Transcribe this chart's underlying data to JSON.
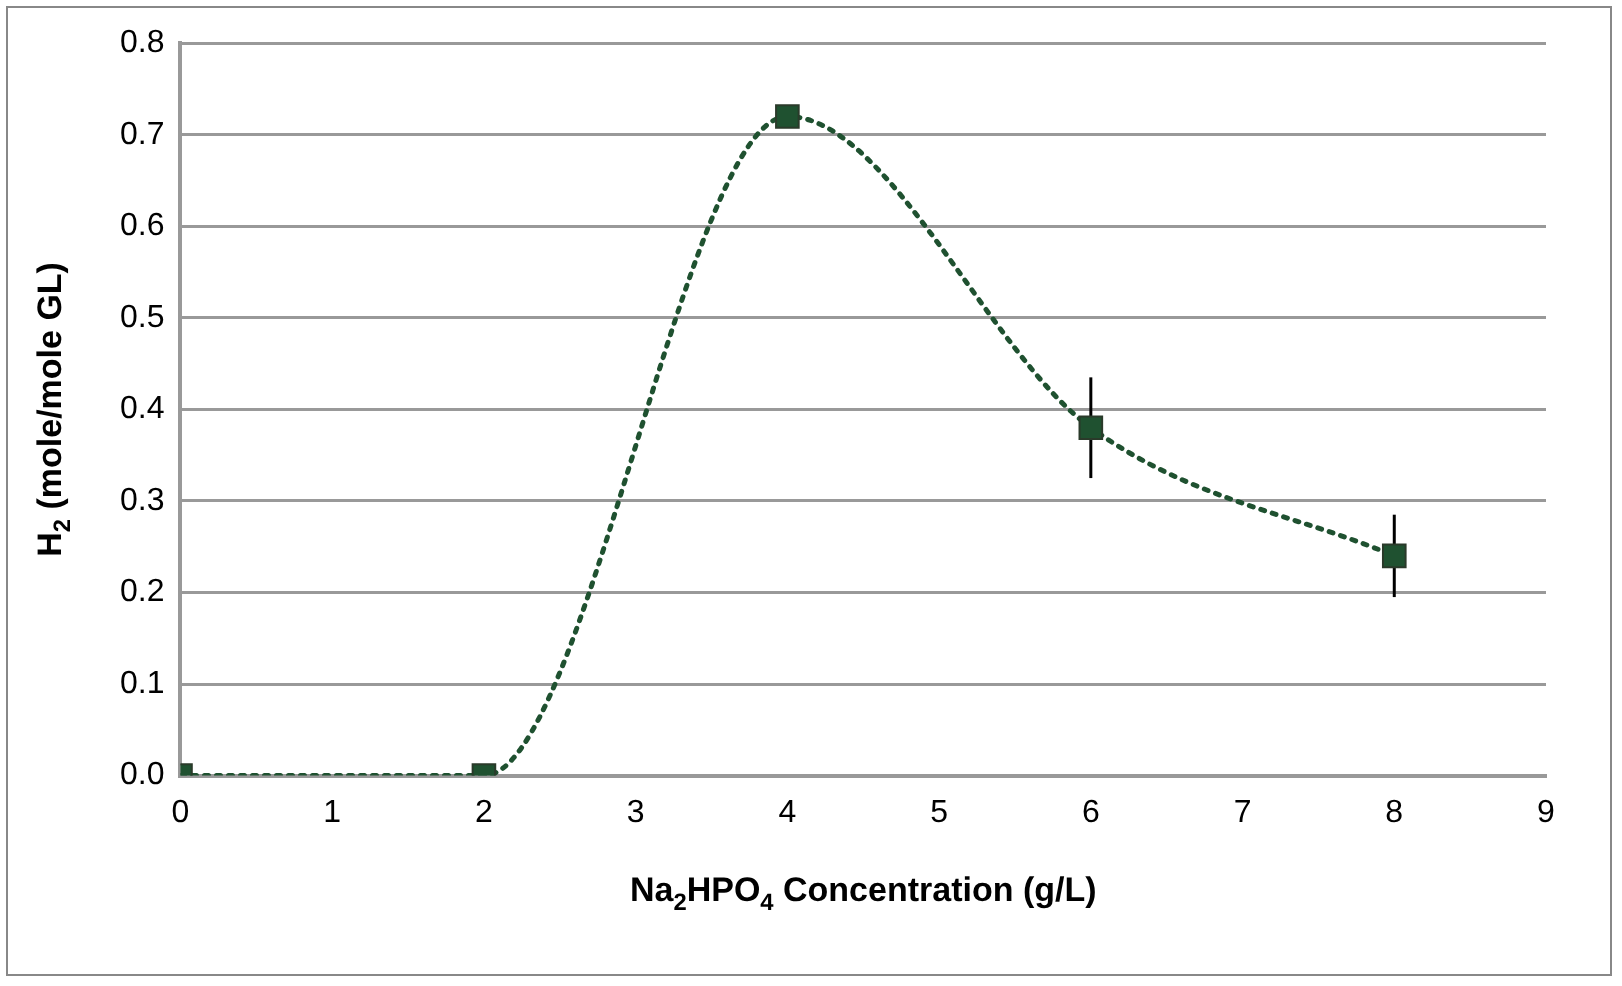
{
  "chart_data": {
    "type": "line",
    "xlabel": "Na$_{2}$HPO$_{4}$ Concentration (g/L)",
    "ylabel": "H$_{2}$ (mole/mole GL)",
    "x": [
      0,
      2,
      4,
      6,
      8
    ],
    "series": [
      {
        "color": "#1f5130",
        "values": [
          0,
          0,
          0.72,
          0.38,
          0.24
        ],
        "errors": [
          null,
          null,
          null,
          0.055,
          0.045
        ]
      }
    ],
    "xlim": [
      0,
      9
    ],
    "xticks": [
      0,
      1,
      2,
      3,
      4,
      5,
      6,
      7,
      8,
      9
    ],
    "ylim": [
      0,
      0.8
    ],
    "yticks": [
      {
        "value": 0,
        "label": "0.0"
      },
      0.1,
      0.2,
      0.3,
      0.4,
      0.5,
      0.6,
      0.7,
      0.8
    ],
    "grid": "y",
    "legend": false,
    "marker": "square",
    "line_style": "dotted"
  }
}
